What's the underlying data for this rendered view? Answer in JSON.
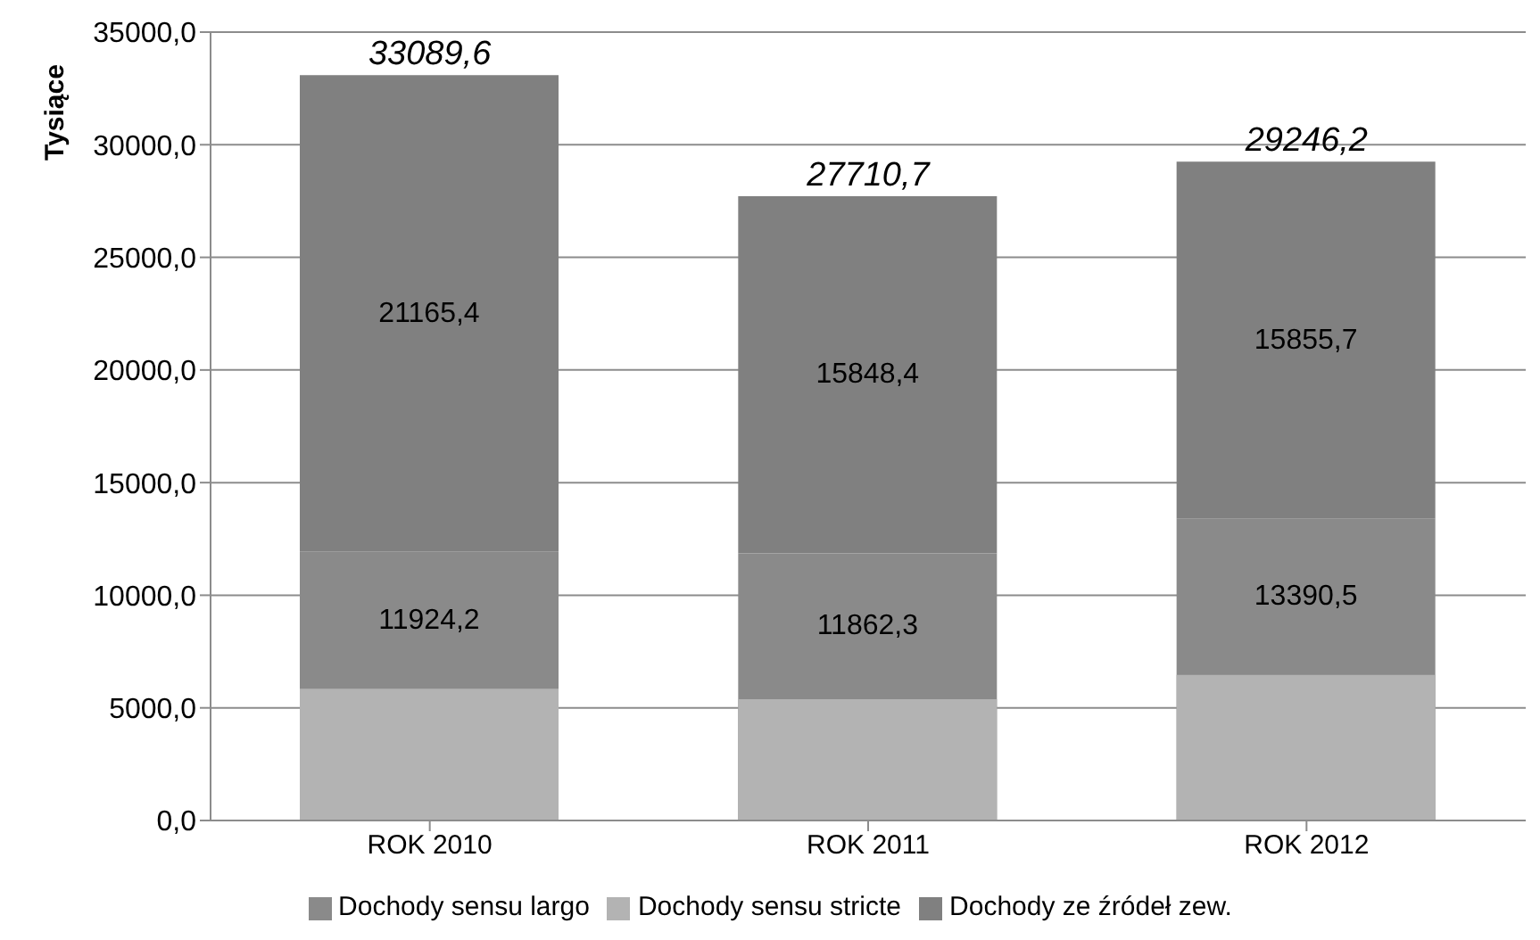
{
  "chart_data": {
    "type": "bar",
    "ylabel": "Tysiące",
    "categories": [
      "ROK 2010",
      "ROK 2011",
      "ROK 2012"
    ],
    "series": [
      {
        "name": "Dochody sensu stricte",
        "color": "#b3b3b3",
        "values": [
          5850,
          5380,
          6460
        ],
        "base": [
          0,
          0,
          0
        ]
      },
      {
        "name": "Dochody sensu largo",
        "color": "#8a8a8a",
        "values": [
          11924.2,
          11862.3,
          13390.5
        ],
        "base": [
          0,
          0,
          0
        ],
        "value_labels": [
          "11924,2",
          "11862,3",
          "13390,5"
        ]
      },
      {
        "name": "Dochody ze źródeł zew.",
        "color": "#808080",
        "values": [
          21165.4,
          15848.4,
          15855.7
        ],
        "base": [
          11924.2,
          11862.3,
          13390.5
        ],
        "value_labels": [
          "21165,4",
          "15848,4",
          "15855,7"
        ]
      }
    ],
    "annotations": [
      {
        "text": "33089,6",
        "x": "ROK 2010",
        "y": 33089.6
      },
      {
        "text": "27710,7",
        "x": "ROK 2011",
        "y": 27710.7
      },
      {
        "text": "29246,2",
        "x": "ROK 2012",
        "y": 29246.2
      }
    ],
    "ylim": [
      0,
      35000
    ],
    "yticks": [
      {
        "value": 0,
        "label": "0,0"
      },
      {
        "value": 5000,
        "label": "5000,0"
      },
      {
        "value": 10000,
        "label": "10000,0"
      },
      {
        "value": 15000,
        "label": "15000,0"
      },
      {
        "value": 20000,
        "label": "20000,0"
      },
      {
        "value": 25000,
        "label": "25000,0"
      },
      {
        "value": 30000,
        "label": "30000,0"
      },
      {
        "value": 35000,
        "label": "35000,0"
      }
    ],
    "grid": "y",
    "legend": "bottom"
  }
}
